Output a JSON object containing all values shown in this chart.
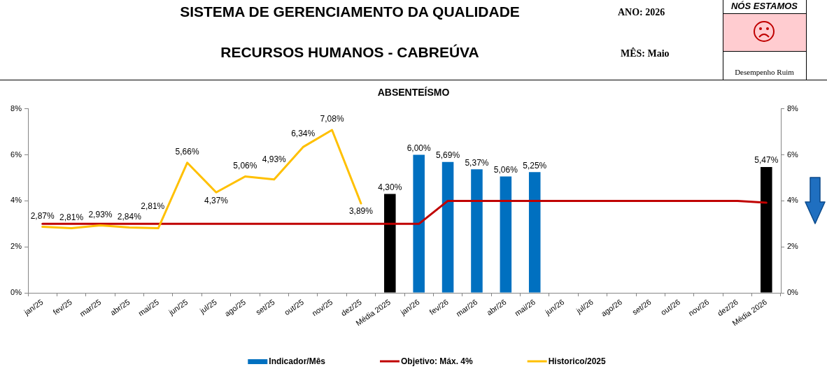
{
  "chart_data": {
    "type": "bar",
    "title": "ABSENTEÍSMO",
    "annotations": [
      "SISTEMA DE GERENCIAMENTO DA QUALIDADE",
      "RECURSOS HUMANOS - CABREÚVA",
      "ANO: 2026",
      "MÊS: Maio",
      "NÓS ESTAMOS",
      "Desempenho Ruim"
    ],
    "categories": [
      "jan/25",
      "fev/25",
      "mar/25",
      "abr/25",
      "mai/25",
      "jun/25",
      "jul/25",
      "ago/25",
      "set/25",
      "out/25",
      "nov/25",
      "dez/25",
      "Média 2025",
      "jan/26",
      "fev/26",
      "mar/26",
      "abr/26",
      "mai/26",
      "jun/26",
      "jul/26",
      "ago/26",
      "set/26",
      "out/26",
      "nov/26",
      "dez/26",
      "Média 2026"
    ],
    "series": [
      {
        "name": "Indicador/Mês",
        "color": "#0070c0",
        "colors": [
          "#0070c0",
          "#0070c0",
          "#0070c0",
          "#0070c0",
          "#0070c0",
          "#0070c0",
          "#0070c0",
          "#0070c0",
          "#0070c0",
          "#0070c0",
          "#0070c0",
          "#0070c0",
          "#000000",
          "#0070c0",
          "#0070c0",
          "#0070c0",
          "#0070c0",
          "#0070c0",
          "#0070c0",
          "#0070c0",
          "#0070c0",
          "#0070c0",
          "#0070c0",
          "#0070c0",
          "#0070c0",
          "#000000"
        ],
        "values": [
          null,
          null,
          null,
          null,
          null,
          null,
          null,
          null,
          null,
          null,
          null,
          null,
          4.3,
          6.0,
          5.69,
          5.37,
          5.06,
          5.25,
          null,
          null,
          null,
          null,
          null,
          null,
          null,
          5.47
        ],
        "value_labels": [
          null,
          null,
          null,
          null,
          null,
          null,
          null,
          null,
          null,
          null,
          null,
          null,
          "4,30%",
          "6,00%",
          "5,69%",
          "5,37%",
          "5,06%",
          "5,25%",
          null,
          null,
          null,
          null,
          null,
          null,
          null,
          "5,47%"
        ]
      },
      {
        "name": "Objetivo: Máx. 4%",
        "type": "line",
        "color": "#c00000",
        "values": [
          3,
          3,
          3,
          3,
          3,
          3,
          3,
          3,
          3,
          3,
          3,
          3,
          3,
          3,
          4,
          4,
          4,
          4,
          4,
          4,
          4,
          4,
          4,
          4,
          4,
          3.92
        ]
      },
      {
        "name": "Historico/2025",
        "type": "line",
        "color": "#ffc000",
        "values": [
          2.87,
          2.81,
          2.93,
          2.84,
          2.81,
          5.66,
          4.37,
          5.06,
          4.93,
          6.34,
          7.08,
          3.89,
          null,
          null,
          null,
          null,
          null,
          null,
          null,
          null,
          null,
          null,
          null,
          null,
          null,
          null
        ],
        "value_labels": [
          "2,87%",
          "2,81%",
          "2,93%",
          "2,84%",
          "2,81%",
          "5,66%",
          "4,37%",
          "5,06%",
          "4,93%",
          "6,34%",
          "7,08%",
          "3,89%",
          null,
          null,
          null,
          null,
          null,
          null,
          null,
          null,
          null,
          null,
          null,
          null,
          null,
          null
        ]
      }
    ],
    "ylim": [
      0,
      8
    ],
    "yticks": [
      {
        "value": 0,
        "label": "0%"
      },
      {
        "value": 2,
        "label": "2%"
      },
      {
        "value": 4,
        "label": "4%"
      },
      {
        "value": 6,
        "label": "6%"
      },
      {
        "value": 8,
        "label": "8%"
      }
    ],
    "y2lim": [
      0,
      8
    ],
    "y2ticks": [
      {
        "value": 0,
        "label": "0%"
      },
      {
        "value": 2,
        "label": "2%"
      },
      {
        "value": 4,
        "label": "4%"
      },
      {
        "value": 6,
        "label": "6%"
      },
      {
        "value": 8,
        "label": "8%"
      }
    ],
    "grid": false,
    "legend": "bottom",
    "marker": "none"
  }
}
